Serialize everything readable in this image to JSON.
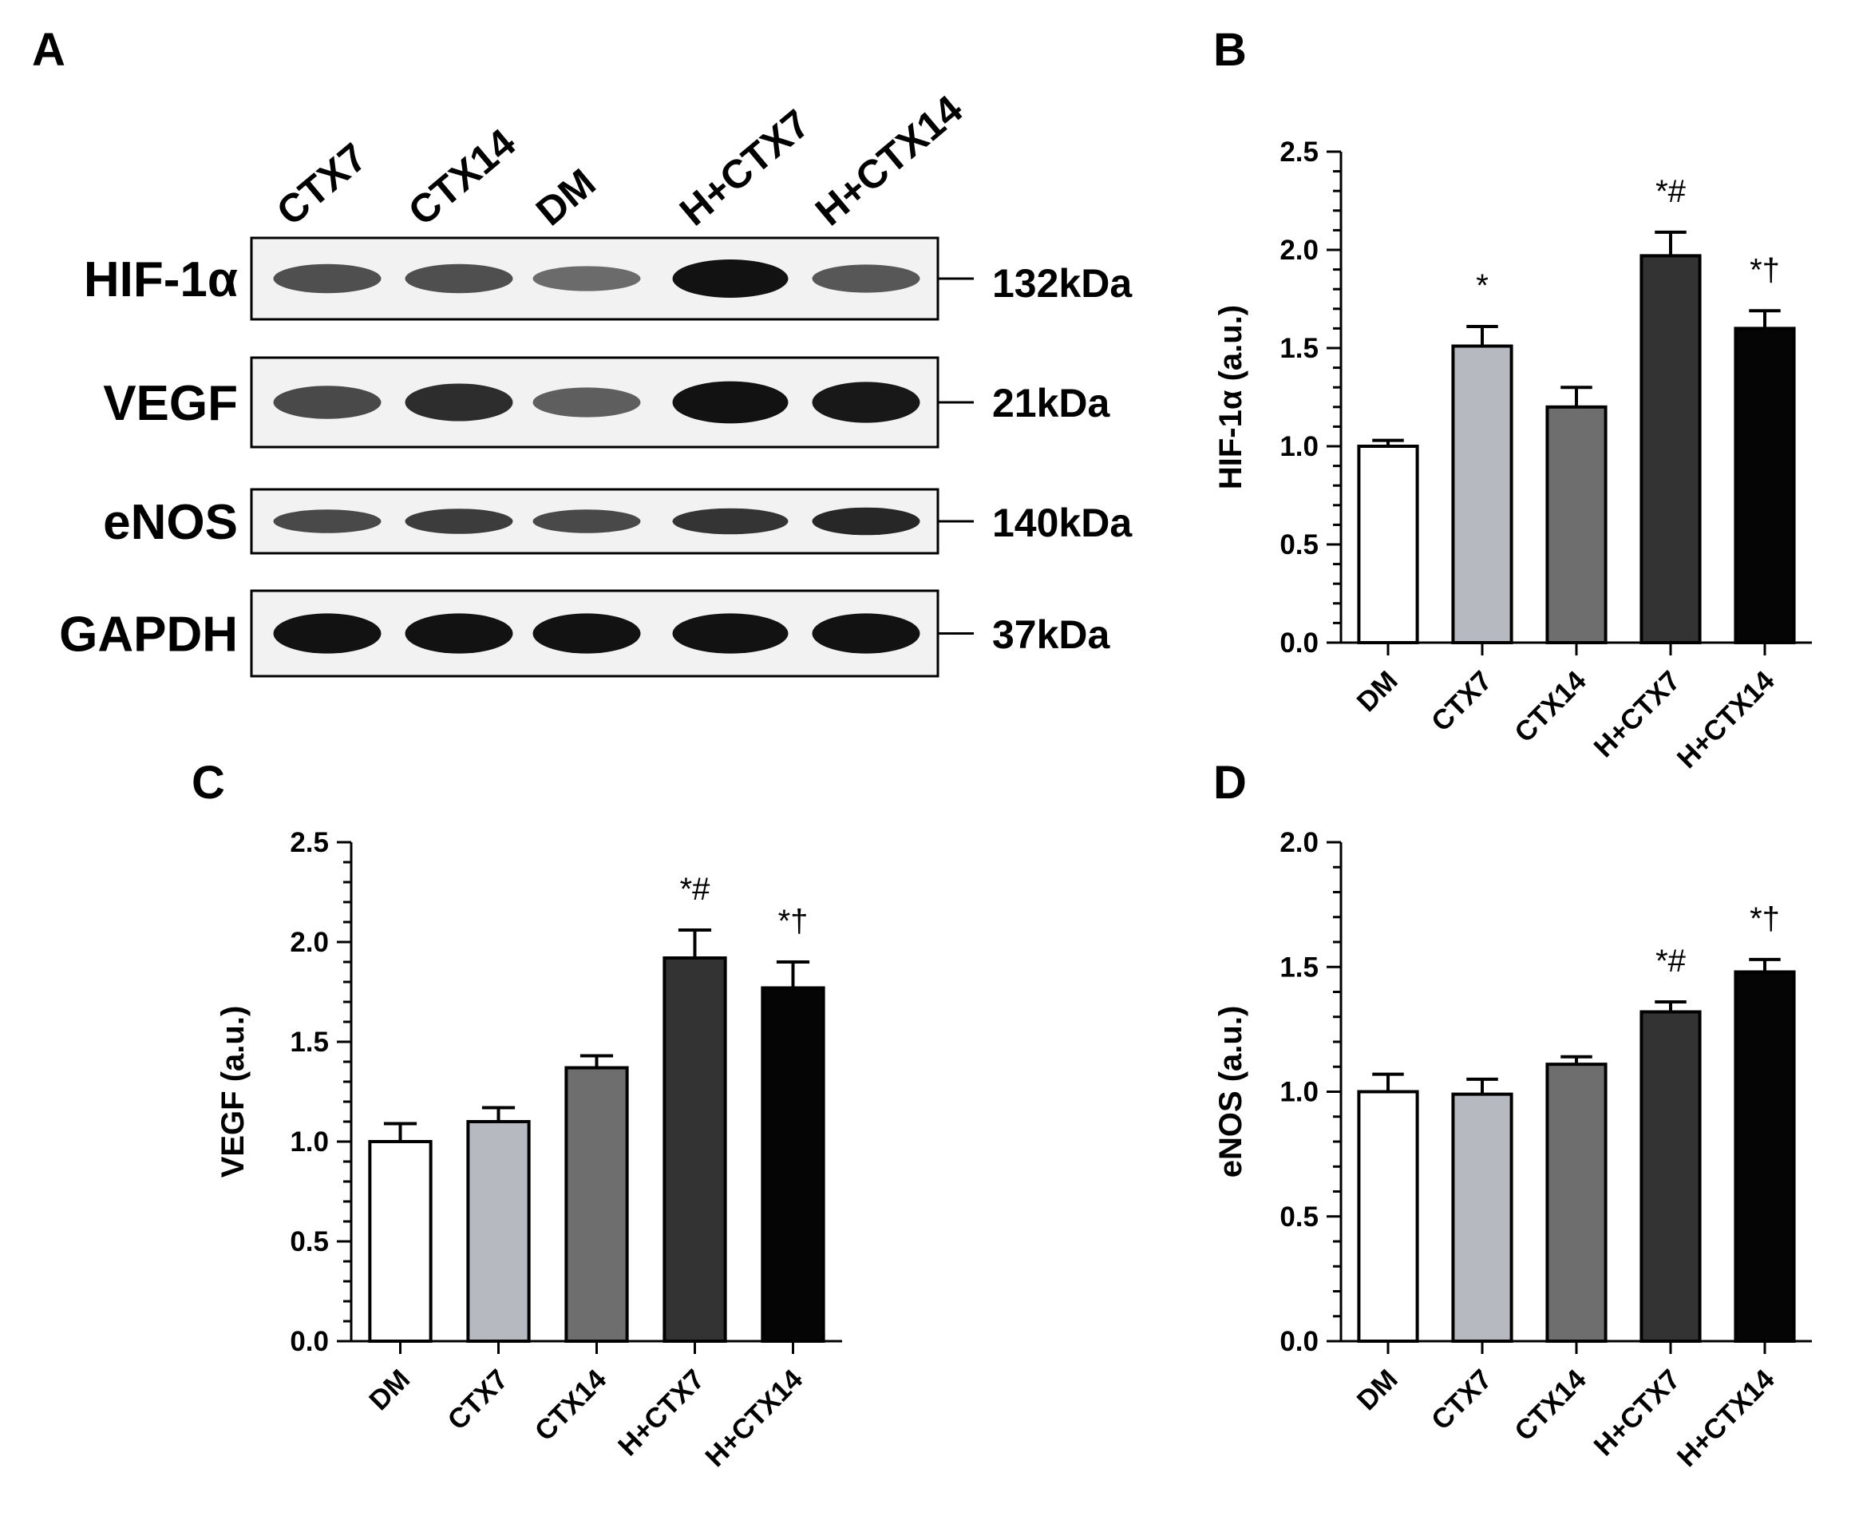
{
  "panels": {
    "a": "A",
    "b": "B",
    "c": "C",
    "d": "D"
  },
  "blot": {
    "lanes": [
      "CTX7",
      "CTX14",
      "DM",
      "H+CTX7",
      "H+CTX14"
    ],
    "rows": [
      {
        "label": "HIF-1α",
        "kda": "132kDa",
        "intensity": [
          0.55,
          0.55,
          0.35,
          1.0,
          0.5
        ]
      },
      {
        "label": "VEGF",
        "kda": "21kDa",
        "intensity": [
          0.6,
          0.8,
          0.45,
          1.0,
          0.95
        ]
      },
      {
        "label": "eNOS",
        "kda": "140kDa",
        "intensity": [
          0.6,
          0.7,
          0.6,
          0.75,
          0.85
        ]
      },
      {
        "label": "GAPDH",
        "kda": "37kDa",
        "intensity": [
          1.0,
          1.0,
          1.0,
          1.0,
          1.0
        ]
      }
    ]
  },
  "chart_data": [
    {
      "type": "bar",
      "categories": [
        "DM",
        "CTX7",
        "CTX14",
        "H+CTX7",
        "H+CTX14"
      ],
      "values": [
        1.0,
        1.51,
        1.2,
        1.97,
        1.6
      ],
      "errors": [
        0.03,
        0.1,
        0.1,
        0.12,
        0.09
      ],
      "significance": [
        "",
        "*",
        "",
        "*#",
        "*†"
      ],
      "bar_colors": [
        "#ffffff",
        "#b7b9c0",
        "#6e6e6e",
        "#333333",
        "#050505"
      ],
      "ylabel": "HIF-1α (a.u.)",
      "ylim": [
        0,
        2.5
      ],
      "yticks": [
        "0.0",
        "0.5",
        "1.0",
        "1.5",
        "2.0",
        "2.5"
      ]
    },
    {
      "type": "bar",
      "categories": [
        "DM",
        "CTX7",
        "CTX14",
        "H+CTX7",
        "H+CTX14"
      ],
      "values": [
        1.0,
        1.1,
        1.37,
        1.92,
        1.77
      ],
      "errors": [
        0.09,
        0.07,
        0.06,
        0.14,
        0.13
      ],
      "significance": [
        "",
        "",
        "",
        "*#",
        "*†"
      ],
      "bar_colors": [
        "#ffffff",
        "#b7b9c0",
        "#6e6e6e",
        "#333333",
        "#050505"
      ],
      "ylabel": "VEGF (a.u.)",
      "ylim": [
        0,
        2.5
      ],
      "yticks": [
        "0.0",
        "0.5",
        "1.0",
        "1.5",
        "2.0",
        "2.5"
      ]
    },
    {
      "type": "bar",
      "categories": [
        "DM",
        "CTX7",
        "CTX14",
        "H+CTX7",
        "H+CTX14"
      ],
      "values": [
        1.0,
        0.99,
        1.11,
        1.32,
        1.48
      ],
      "errors": [
        0.07,
        0.06,
        0.03,
        0.04,
        0.05
      ],
      "significance": [
        "",
        "",
        "",
        "*#",
        "*†"
      ],
      "bar_colors": [
        "#ffffff",
        "#b7b9c0",
        "#6e6e6e",
        "#333333",
        "#050505"
      ],
      "ylabel": "eNOS (a.u.)",
      "ylim": [
        0,
        2.0
      ],
      "yticks": [
        "0.0",
        "0.5",
        "1.0",
        "1.5",
        "2.0"
      ]
    }
  ]
}
